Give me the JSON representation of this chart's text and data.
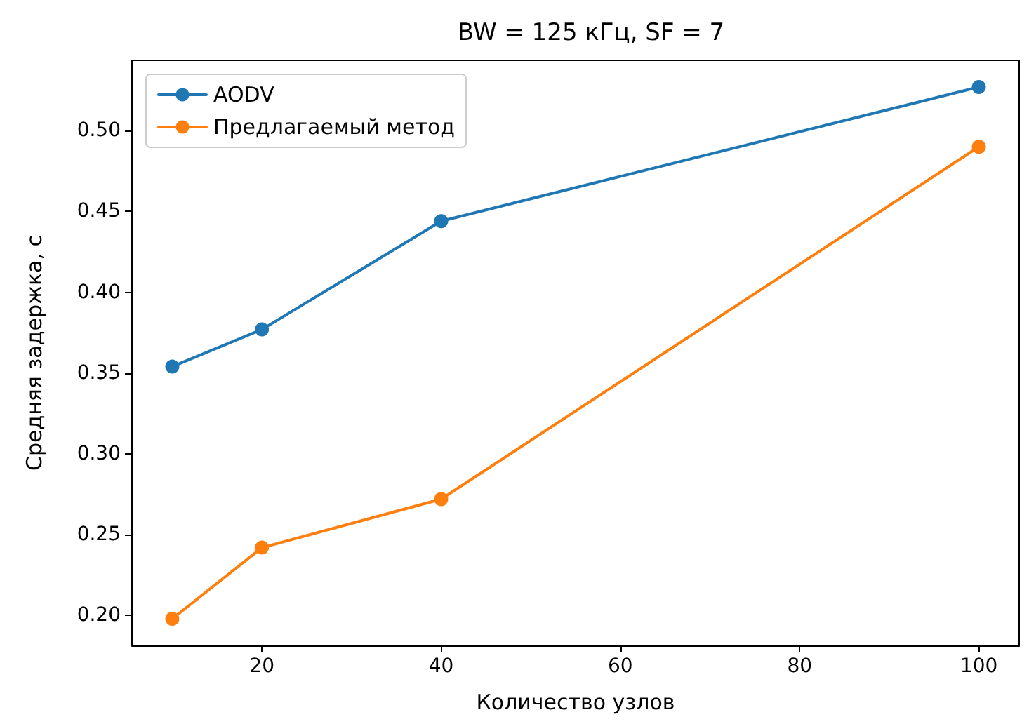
{
  "chart_data": {
    "type": "line",
    "title": "BW = 125 кГц, SF = 7",
    "xlabel": "Количество узлов",
    "ylabel": "Средняя задержка, с",
    "x": [
      10,
      20,
      40,
      100
    ],
    "series": [
      {
        "name": "AODV",
        "color": "#1f77b4",
        "values": [
          0.354,
          0.377,
          0.444,
          0.527
        ]
      },
      {
        "name": "Предлагаемый метод",
        "color": "#ff7f0e",
        "values": [
          0.198,
          0.242,
          0.272,
          0.49
        ]
      }
    ],
    "xlim": [
      5.5,
      104.5
    ],
    "xticks": [
      20,
      40,
      60,
      80,
      100
    ],
    "ylim": [
      0.1815,
      0.5435
    ],
    "yticks": [
      {
        "value": 0.2,
        "label": "0.20"
      },
      0.25,
      {
        "value": 0.3,
        "label": "0.30"
      },
      0.35,
      {
        "value": 0.4,
        "label": "0.40"
      },
      0.45,
      {
        "value": 0.5,
        "label": "0.50"
      }
    ],
    "legend": "top left",
    "marker": "circle",
    "line_style": "solid",
    "grid": false
  }
}
